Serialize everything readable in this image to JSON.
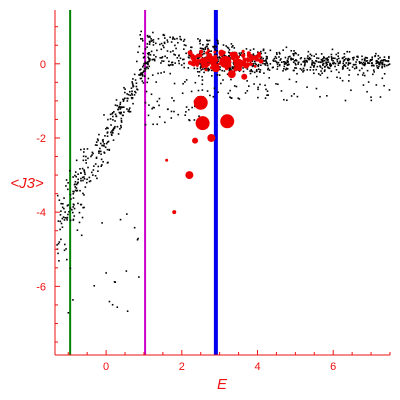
{
  "chart_data": {
    "type": "scatter",
    "title": "",
    "xlabel": "E",
    "ylabel": "<J3>",
    "xlim": [
      -1.35,
      7.5
    ],
    "ylim": [
      -7.85,
      1.45
    ],
    "grid": false,
    "legend": "none",
    "colors": {
      "axis": "#ee1111",
      "background_points": "#000000",
      "highlight_points": "#ee0000",
      "line_green": "#008000",
      "line_magenta": "#cc00cc",
      "line_blue": "#0000ee"
    },
    "x_ticks": [
      {
        "value": 0,
        "label": "0"
      },
      {
        "value": 2,
        "label": "2"
      },
      {
        "value": 4,
        "label": "4"
      },
      {
        "value": 6,
        "label": "6"
      }
    ],
    "y_ticks": [
      {
        "value": 0,
        "label": "0"
      },
      {
        "value": -2,
        "label": "-2"
      },
      {
        "value": -4,
        "label": "-4"
      },
      {
        "value": -6,
        "label": "-6"
      }
    ],
    "vertical_lines": [
      {
        "x": -0.95,
        "color": "#008000",
        "width": 2
      },
      {
        "x": 1.03,
        "color": "#cc00cc",
        "width": 2
      },
      {
        "x": 2.9,
        "color": "#0000ee",
        "width": 4
      }
    ],
    "large_points": [
      {
        "x": 2.5,
        "y": -1.05,
        "r": 7
      },
      {
        "x": 2.55,
        "y": -1.6,
        "r": 7
      },
      {
        "x": 3.2,
        "y": -1.55,
        "r": 7
      },
      {
        "x": 2.78,
        "y": -2.0,
        "r": 4
      },
      {
        "x": 2.2,
        "y": -3.0,
        "r": 4
      },
      {
        "x": 2.35,
        "y": -2.07,
        "r": 3
      },
      {
        "x": 3.15,
        "y": 0.05,
        "r": 6
      },
      {
        "x": 3.5,
        "y": 0.0,
        "r": 5
      },
      {
        "x": 3.32,
        "y": -0.28,
        "r": 4
      },
      {
        "x": 2.9,
        "y": -0.12,
        "r": 4
      },
      {
        "x": 3.05,
        "y": 0.3,
        "r": 3
      },
      {
        "x": 3.7,
        "y": -0.05,
        "r": 3
      },
      {
        "x": 2.75,
        "y": 0.15,
        "r": 3
      },
      {
        "x": 3.4,
        "y": 0.25,
        "r": 3
      },
      {
        "x": 3.65,
        "y": -0.35,
        "r": 3
      },
      {
        "x": 1.8,
        "y": -4.0,
        "r": 2
      },
      {
        "x": 1.6,
        "y": -2.6,
        "r": 1.5
      }
    ]
  }
}
